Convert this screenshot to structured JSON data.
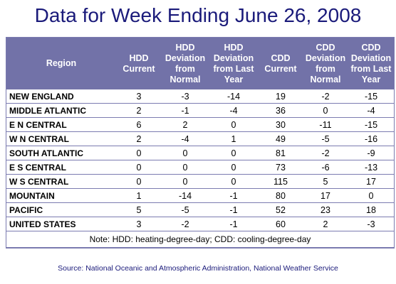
{
  "title": "Data for Week Ending June 26, 2008",
  "headers": [
    "Region",
    "HDD Current",
    "HDD Deviation from Normal",
    "HDD Deviation from Last Year",
    "CDD Current",
    "CDD Deviation from Normal",
    "CDD Deviation from Last Year"
  ],
  "rows": [
    [
      "NEW ENGLAND",
      "3",
      "-3",
      "-14",
      "19",
      "-2",
      "-15"
    ],
    [
      "MIDDLE ATLANTIC",
      "2",
      "-1",
      "-4",
      "36",
      "0",
      "-4"
    ],
    [
      "E N CENTRAL",
      "6",
      "2",
      "0",
      "30",
      "-11",
      "-15"
    ],
    [
      "W N CENTRAL",
      "2",
      "-4",
      "1",
      "49",
      "-5",
      "-16"
    ],
    [
      "SOUTH ATLANTIC",
      "0",
      "0",
      "0",
      "81",
      "-2",
      "-9"
    ],
    [
      "E S CENTRAL",
      "0",
      "0",
      "0",
      "73",
      "-6",
      "-13"
    ],
    [
      "W S CENTRAL",
      "0",
      "0",
      "0",
      "115",
      "5",
      "17"
    ],
    [
      "MOUNTAIN",
      "1",
      "-14",
      "-1",
      "80",
      "17",
      "0"
    ],
    [
      "PACIFIC",
      "5",
      "-5",
      "-1",
      "52",
      "23",
      "18"
    ],
    [
      "UNITED STATES",
      "3",
      "-2",
      "-1",
      "60",
      "2",
      "-3"
    ]
  ],
  "note": "Note: HDD: heating-degree-day; CDD: cooling-degree-day",
  "source": "Source:  National Oceanic and Atmospheric Administration, National Weather Service"
}
